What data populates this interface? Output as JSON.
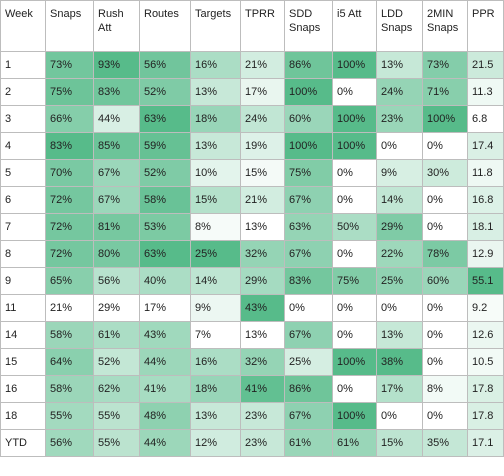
{
  "table": {
    "columns": [
      "Week",
      "Snaps",
      "Rush Att",
      "Routes",
      "Targets",
      "TPRR",
      "SDD Snaps",
      "i5 Att",
      "LDD Snaps",
      "2MIN Snaps",
      "PPR"
    ],
    "rows": [
      {
        "week": "1",
        "values": [
          "73%",
          "93%",
          "56%",
          "16%",
          "21%",
          "86%",
          "100%",
          "13%",
          "73%",
          "21.5"
        ]
      },
      {
        "week": "2",
        "values": [
          "75%",
          "83%",
          "52%",
          "13%",
          "17%",
          "100%",
          "0%",
          "24%",
          "71%",
          "11.3"
        ]
      },
      {
        "week": "3",
        "values": [
          "66%",
          "44%",
          "63%",
          "18%",
          "24%",
          "60%",
          "100%",
          "23%",
          "100%",
          "6.8"
        ]
      },
      {
        "week": "4",
        "values": [
          "83%",
          "85%",
          "59%",
          "13%",
          "19%",
          "100%",
          "100%",
          "0%",
          "0%",
          "17.4"
        ]
      },
      {
        "week": "5",
        "values": [
          "70%",
          "67%",
          "52%",
          "10%",
          "15%",
          "75%",
          "0%",
          "9%",
          "30%",
          "11.8"
        ]
      },
      {
        "week": "6",
        "values": [
          "72%",
          "67%",
          "58%",
          "15%",
          "21%",
          "67%",
          "0%",
          "14%",
          "0%",
          "16.8"
        ]
      },
      {
        "week": "7",
        "values": [
          "72%",
          "81%",
          "53%",
          "8%",
          "13%",
          "63%",
          "50%",
          "29%",
          "0%",
          "18.1"
        ]
      },
      {
        "week": "8",
        "values": [
          "72%",
          "80%",
          "63%",
          "25%",
          "32%",
          "67%",
          "0%",
          "22%",
          "78%",
          "12.9"
        ]
      },
      {
        "week": "9",
        "values": [
          "65%",
          "56%",
          "40%",
          "14%",
          "29%",
          "83%",
          "75%",
          "25%",
          "60%",
          "55.1"
        ]
      },
      {
        "week": "11",
        "values": [
          "21%",
          "29%",
          "17%",
          "9%",
          "43%",
          "0%",
          "0%",
          "0%",
          "0%",
          "9.2"
        ]
      },
      {
        "week": "14",
        "values": [
          "58%",
          "61%",
          "43%",
          "7%",
          "13%",
          "67%",
          "0%",
          "13%",
          "0%",
          "12.6"
        ]
      },
      {
        "week": "15",
        "values": [
          "64%",
          "52%",
          "44%",
          "16%",
          "32%",
          "25%",
          "100%",
          "38%",
          "0%",
          "10.5"
        ]
      },
      {
        "week": "16",
        "values": [
          "58%",
          "62%",
          "41%",
          "18%",
          "41%",
          "86%",
          "0%",
          "17%",
          "8%",
          "17.8"
        ]
      },
      {
        "week": "18",
        "values": [
          "55%",
          "55%",
          "48%",
          "13%",
          "23%",
          "67%",
          "100%",
          "0%",
          "0%",
          "17.8"
        ]
      },
      {
        "week": "YTD",
        "values": [
          "56%",
          "55%",
          "44%",
          "12%",
          "23%",
          "61%",
          "61%",
          "15%",
          "35%",
          "17.1"
        ]
      }
    ]
  },
  "heat_colors": {
    "low": "#ffffff",
    "high": "#57bb8a"
  }
}
